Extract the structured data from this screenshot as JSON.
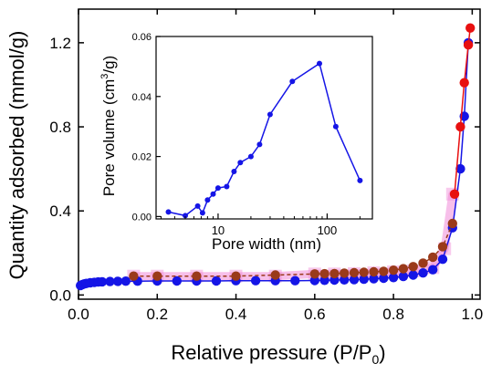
{
  "chart_data": [
    {
      "type": "scatter",
      "role": "main",
      "xlabel": "Relative pressure (P/P",
      "xlabel_sub": "0",
      "xlabel_end": ")",
      "ylabel": "Quantity adsorbed (mmol/g)",
      "xlim": [
        0.0,
        1.02
      ],
      "ylim": [
        -0.02,
        1.36
      ],
      "x_ticks": [
        0.0,
        0.2,
        0.4,
        0.6,
        0.8,
        1.0
      ],
      "x_tick_labels": [
        "0.0",
        "0.2",
        "0.4",
        "0.6",
        "0.8",
        "1.0"
      ],
      "y_ticks": [
        0.0,
        0.4,
        0.8,
        1.2
      ],
      "y_tick_labels": [
        "0.0",
        "0.4",
        "0.8",
        "1.2"
      ],
      "grid": false,
      "series": [
        {
          "color": "#f08ad8",
          "style": "band",
          "x": [
            0.14,
            0.2,
            0.3,
            0.4,
            0.5,
            0.6,
            0.65,
            0.7,
            0.75,
            0.8,
            0.85,
            0.9,
            0.93,
            0.95
          ],
          "values": [
            0.09,
            0.09,
            0.09,
            0.09,
            0.09,
            0.1,
            0.1,
            0.102,
            0.106,
            0.11,
            0.115,
            0.13,
            0.22,
            0.48
          ]
        },
        {
          "color": "#1515e6",
          "style": "markers-line",
          "x": [
            0.005,
            0.01,
            0.015,
            0.02,
            0.03,
            0.04,
            0.05,
            0.06,
            0.08,
            0.1,
            0.12,
            0.15,
            0.2,
            0.25,
            0.3,
            0.35,
            0.4,
            0.45,
            0.5,
            0.55,
            0.6,
            0.625,
            0.65,
            0.675,
            0.7,
            0.725,
            0.75,
            0.775,
            0.8,
            0.825,
            0.85,
            0.875,
            0.9,
            0.925,
            0.95,
            0.97,
            0.98,
            0.99
          ],
          "values": [
            0.045,
            0.05,
            0.053,
            0.055,
            0.058,
            0.06,
            0.062,
            0.063,
            0.064,
            0.065,
            0.066,
            0.066,
            0.067,
            0.067,
            0.067,
            0.067,
            0.068,
            0.068,
            0.068,
            0.068,
            0.069,
            0.07,
            0.071,
            0.072,
            0.073,
            0.075,
            0.077,
            0.08,
            0.083,
            0.088,
            0.095,
            0.105,
            0.12,
            0.17,
            0.32,
            0.6,
            0.85,
            1.2
          ]
        },
        {
          "color": "#9a3a1a",
          "style": "markers-dashed",
          "x": [
            0.14,
            0.2,
            0.3,
            0.4,
            0.5,
            0.6,
            0.625,
            0.65,
            0.675,
            0.7,
            0.725,
            0.75,
            0.775,
            0.8,
            0.825,
            0.85,
            0.875,
            0.9,
            0.925,
            0.95
          ],
          "values": [
            0.09,
            0.09,
            0.09,
            0.09,
            0.095,
            0.1,
            0.101,
            0.102,
            0.104,
            0.106,
            0.108,
            0.11,
            0.113,
            0.118,
            0.125,
            0.135,
            0.152,
            0.18,
            0.23,
            0.34
          ]
        },
        {
          "color": "#e81010",
          "style": "markers-line",
          "x": [
            0.955,
            0.97,
            0.98,
            0.99,
            0.995
          ],
          "values": [
            0.48,
            0.8,
            1.01,
            1.19,
            1.27
          ]
        }
      ]
    },
    {
      "type": "line",
      "role": "inset",
      "xlabel": "Pore width (nm)",
      "ylabel": "Pore volume (cm",
      "ylabel_sup": "3",
      "ylabel_end": "/g)",
      "xscale": "log",
      "xlim": [
        2.7,
        260
      ],
      "ylim": [
        -0.0008,
        0.06
      ],
      "x_ticks": [
        10,
        100
      ],
      "x_tick_labels": [
        "10",
        "100"
      ],
      "y_ticks": [
        0.0,
        0.02,
        0.04,
        0.06
      ],
      "y_tick_labels": [
        "0.00",
        "0.02",
        "0.04",
        "0.06"
      ],
      "grid": false,
      "series": [
        {
          "color": "#1515e6",
          "x": [
            3.5,
            5,
            6.5,
            7.2,
            8,
            9,
            10,
            12,
            14,
            16,
            20,
            24,
            30,
            48,
            85,
            120,
            200
          ],
          "values": [
            0.0015,
            0.0003,
            0.0035,
            0.0012,
            0.0055,
            0.0075,
            0.0095,
            0.01,
            0.015,
            0.018,
            0.02,
            0.024,
            0.034,
            0.045,
            0.051,
            0.03,
            0.012
          ]
        }
      ]
    }
  ]
}
